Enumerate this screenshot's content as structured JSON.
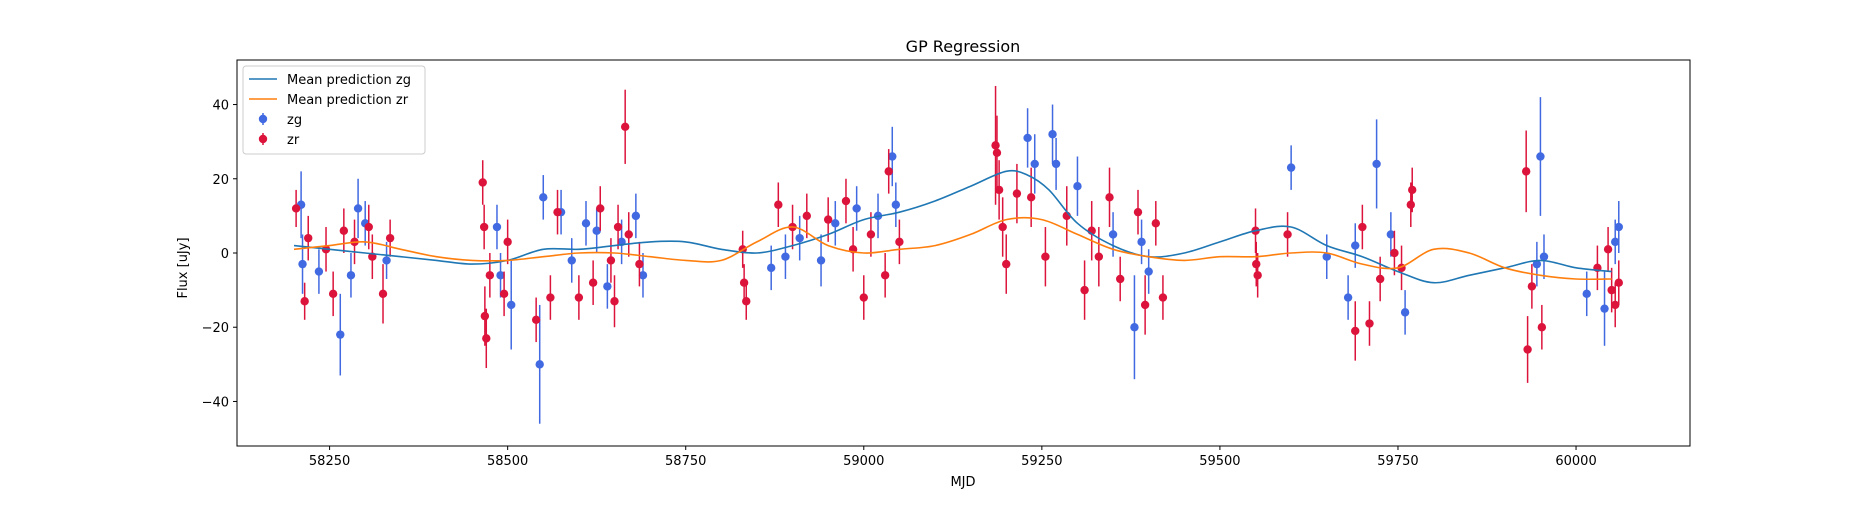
{
  "chart_data": {
    "type": "scatter",
    "title": "GP Regression",
    "xlabel": "MJD",
    "ylabel": "Flux [uJy]",
    "xlim": [
      58120,
      60160
    ],
    "ylim": [
      -52,
      52
    ],
    "x_ticks": [
      58250,
      58500,
      58750,
      59000,
      59250,
      59500,
      59750,
      60000
    ],
    "x_tick_labels": [
      "58250",
      "58500",
      "58750",
      "59000",
      "59250",
      "59500",
      "59750",
      "60000"
    ],
    "y_ticks": [
      -40,
      -20,
      0,
      20,
      40
    ],
    "y_tick_labels": [
      "−40",
      "−20",
      "0",
      "20",
      "40"
    ],
    "grid": false,
    "legend_position": "upper-left",
    "colors": {
      "zg_line": "#1f77b4",
      "zr_line": "#ff7f0e",
      "zg_points": "#4169e1",
      "zr_points": "#dc143c"
    },
    "series": [
      {
        "name": "Mean prediction zg",
        "kind": "line",
        "color": "#1f77b4",
        "x": [
          58200,
          58250,
          58300,
          58350,
          58400,
          58450,
          58500,
          58550,
          58600,
          58650,
          58700,
          58750,
          58800,
          58850,
          58900,
          58950,
          59000,
          59050,
          59100,
          59150,
          59200,
          59230,
          59260,
          59300,
          59350,
          59400,
          59450,
          59500,
          59550,
          59600,
          59650,
          59700,
          59750,
          59800,
          59850,
          59900,
          59950,
          60000,
          60050
        ],
        "y": [
          2,
          1,
          0,
          -1,
          -2,
          -3,
          -2,
          1,
          1,
          2,
          3,
          3,
          1,
          0,
          2,
          5,
          9,
          11,
          14,
          18,
          22,
          21,
          17,
          8,
          2,
          -1,
          0,
          3,
          6,
          7,
          2,
          -1,
          -5,
          -8,
          -6,
          -4,
          -2,
          -4,
          -5
        ]
      },
      {
        "name": "Mean prediction zr",
        "kind": "line",
        "color": "#ff7f0e",
        "x": [
          58200,
          58250,
          58300,
          58350,
          58400,
          58450,
          58500,
          58550,
          58600,
          58650,
          58700,
          58750,
          58800,
          58850,
          58900,
          58950,
          59000,
          59050,
          59100,
          59150,
          59200,
          59250,
          59300,
          59350,
          59400,
          59450,
          59500,
          59550,
          59600,
          59650,
          59700,
          59750,
          59800,
          59850,
          59900,
          59950,
          60000,
          60050
        ],
        "y": [
          1,
          2,
          3,
          1,
          -1,
          -2,
          -2,
          -1,
          0,
          0,
          -1,
          -2,
          -2,
          3,
          7,
          2,
          0,
          1,
          2,
          5,
          9,
          9,
          5,
          1,
          -1,
          -2,
          -1,
          -1,
          0,
          0,
          -3,
          -4,
          1,
          0,
          -4,
          -6,
          -7,
          -7
        ]
      },
      {
        "name": "zg",
        "kind": "errorbar",
        "color": "#4169e1",
        "points": [
          {
            "x": 58210,
            "y": 13,
            "e": 9
          },
          {
            "x": 58212,
            "y": -3,
            "e": 8
          },
          {
            "x": 58235,
            "y": -5,
            "e": 6
          },
          {
            "x": 58265,
            "y": -22,
            "e": 11
          },
          {
            "x": 58280,
            "y": -6,
            "e": 6
          },
          {
            "x": 58290,
            "y": 12,
            "e": 8
          },
          {
            "x": 58300,
            "y": 8,
            "e": 6
          },
          {
            "x": 58330,
            "y": -2,
            "e": 5
          },
          {
            "x": 58485,
            "y": 7,
            "e": 6
          },
          {
            "x": 58490,
            "y": -6,
            "e": 6
          },
          {
            "x": 58505,
            "y": -14,
            "e": 12
          },
          {
            "x": 58545,
            "y": -30,
            "e": 16
          },
          {
            "x": 58550,
            "y": 15,
            "e": 6
          },
          {
            "x": 58575,
            "y": 11,
            "e": 6
          },
          {
            "x": 58590,
            "y": -2,
            "e": 6
          },
          {
            "x": 58610,
            "y": 8,
            "e": 6
          },
          {
            "x": 58625,
            "y": 6,
            "e": 6
          },
          {
            "x": 58640,
            "y": -9,
            "e": 6
          },
          {
            "x": 58660,
            "y": 3,
            "e": 6
          },
          {
            "x": 58680,
            "y": 10,
            "e": 6
          },
          {
            "x": 58690,
            "y": -6,
            "e": 6
          },
          {
            "x": 58870,
            "y": -4,
            "e": 6
          },
          {
            "x": 58890,
            "y": -1,
            "e": 6
          },
          {
            "x": 58910,
            "y": 4,
            "e": 6
          },
          {
            "x": 58940,
            "y": -2,
            "e": 7
          },
          {
            "x": 58960,
            "y": 8,
            "e": 6
          },
          {
            "x": 58990,
            "y": 12,
            "e": 6
          },
          {
            "x": 59020,
            "y": 10,
            "e": 6
          },
          {
            "x": 59040,
            "y": 26,
            "e": 8
          },
          {
            "x": 59045,
            "y": 13,
            "e": 6
          },
          {
            "x": 59230,
            "y": 31,
            "e": 8
          },
          {
            "x": 59240,
            "y": 24,
            "e": 8
          },
          {
            "x": 59265,
            "y": 32,
            "e": 8
          },
          {
            "x": 59270,
            "y": 24,
            "e": 7
          },
          {
            "x": 59300,
            "y": 18,
            "e": 8
          },
          {
            "x": 59350,
            "y": 5,
            "e": 6
          },
          {
            "x": 59380,
            "y": -20,
            "e": 14
          },
          {
            "x": 59390,
            "y": 3,
            "e": 6
          },
          {
            "x": 59400,
            "y": -5,
            "e": 6
          },
          {
            "x": 59600,
            "y": 23,
            "e": 6
          },
          {
            "x": 59650,
            "y": -1,
            "e": 6
          },
          {
            "x": 59680,
            "y": -12,
            "e": 6
          },
          {
            "x": 59690,
            "y": 2,
            "e": 6
          },
          {
            "x": 59720,
            "y": 24,
            "e": 12
          },
          {
            "x": 59740,
            "y": 5,
            "e": 6
          },
          {
            "x": 59760,
            "y": -16,
            "e": 6
          },
          {
            "x": 59945,
            "y": -3,
            "e": 6
          },
          {
            "x": 59950,
            "y": 26,
            "e": 16
          },
          {
            "x": 59955,
            "y": -1,
            "e": 6
          },
          {
            "x": 60015,
            "y": -11,
            "e": 6
          },
          {
            "x": 60040,
            "y": -15,
            "e": 10
          },
          {
            "x": 60055,
            "y": 3,
            "e": 6
          },
          {
            "x": 60060,
            "y": 7,
            "e": 7
          }
        ]
      },
      {
        "name": "zr",
        "kind": "errorbar",
        "color": "#dc143c",
        "points": [
          {
            "x": 58203,
            "y": 12,
            "e": 5
          },
          {
            "x": 58215,
            "y": -13,
            "e": 5
          },
          {
            "x": 58220,
            "y": 4,
            "e": 6
          },
          {
            "x": 58245,
            "y": 1,
            "e": 6
          },
          {
            "x": 58255,
            "y": -11,
            "e": 6
          },
          {
            "x": 58270,
            "y": 6,
            "e": 6
          },
          {
            "x": 58285,
            "y": 3,
            "e": 6
          },
          {
            "x": 58305,
            "y": 7,
            "e": 6
          },
          {
            "x": 58310,
            "y": -1,
            "e": 6
          },
          {
            "x": 58325,
            "y": -11,
            "e": 8
          },
          {
            "x": 58335,
            "y": 4,
            "e": 5
          },
          {
            "x": 58465,
            "y": 19,
            "e": 6
          },
          {
            "x": 58467,
            "y": 7,
            "e": 6
          },
          {
            "x": 58468,
            "y": -17,
            "e": 8
          },
          {
            "x": 58470,
            "y": -23,
            "e": 8
          },
          {
            "x": 58475,
            "y": -6,
            "e": 6
          },
          {
            "x": 58495,
            "y": -11,
            "e": 6
          },
          {
            "x": 58500,
            "y": 3,
            "e": 6
          },
          {
            "x": 58540,
            "y": -18,
            "e": 6
          },
          {
            "x": 58560,
            "y": -12,
            "e": 6
          },
          {
            "x": 58570,
            "y": 11,
            "e": 6
          },
          {
            "x": 58600,
            "y": -12,
            "e": 6
          },
          {
            "x": 58620,
            "y": -8,
            "e": 6
          },
          {
            "x": 58630,
            "y": 12,
            "e": 6
          },
          {
            "x": 58645,
            "y": -2,
            "e": 6
          },
          {
            "x": 58650,
            "y": -13,
            "e": 7
          },
          {
            "x": 58655,
            "y": 7,
            "e": 6
          },
          {
            "x": 58665,
            "y": 34,
            "e": 10
          },
          {
            "x": 58670,
            "y": 5,
            "e": 6
          },
          {
            "x": 58685,
            "y": -3,
            "e": 6
          },
          {
            "x": 58830,
            "y": 1,
            "e": 5
          },
          {
            "x": 58832,
            "y": -8,
            "e": 5
          },
          {
            "x": 58835,
            "y": -13,
            "e": 5
          },
          {
            "x": 58880,
            "y": 13,
            "e": 6
          },
          {
            "x": 58900,
            "y": 7,
            "e": 6
          },
          {
            "x": 58920,
            "y": 10,
            "e": 6
          },
          {
            "x": 58950,
            "y": 9,
            "e": 6
          },
          {
            "x": 58975,
            "y": 14,
            "e": 6
          },
          {
            "x": 58985,
            "y": 1,
            "e": 6
          },
          {
            "x": 59000,
            "y": -12,
            "e": 6
          },
          {
            "x": 59010,
            "y": 5,
            "e": 6
          },
          {
            "x": 59030,
            "y": -6,
            "e": 6
          },
          {
            "x": 59035,
            "y": 22,
            "e": 6
          },
          {
            "x": 59050,
            "y": 3,
            "e": 6
          },
          {
            "x": 59185,
            "y": 29,
            "e": 16
          },
          {
            "x": 59187,
            "y": 27,
            "e": 10
          },
          {
            "x": 59190,
            "y": 17,
            "e": 8
          },
          {
            "x": 59195,
            "y": 7,
            "e": 8
          },
          {
            "x": 59200,
            "y": -3,
            "e": 8
          },
          {
            "x": 59215,
            "y": 16,
            "e": 8
          },
          {
            "x": 59235,
            "y": 15,
            "e": 8
          },
          {
            "x": 59255,
            "y": -1,
            "e": 8
          },
          {
            "x": 59285,
            "y": 10,
            "e": 8
          },
          {
            "x": 59310,
            "y": -10,
            "e": 8
          },
          {
            "x": 59320,
            "y": 6,
            "e": 8
          },
          {
            "x": 59330,
            "y": -1,
            "e": 8
          },
          {
            "x": 59345,
            "y": 15,
            "e": 8
          },
          {
            "x": 59360,
            "y": -7,
            "e": 6
          },
          {
            "x": 59385,
            "y": 11,
            "e": 6
          },
          {
            "x": 59395,
            "y": -14,
            "e": 8
          },
          {
            "x": 59410,
            "y": 8,
            "e": 6
          },
          {
            "x": 59420,
            "y": -12,
            "e": 6
          },
          {
            "x": 59550,
            "y": 6,
            "e": 6
          },
          {
            "x": 59551,
            "y": -3,
            "e": 6
          },
          {
            "x": 59553,
            "y": -6,
            "e": 6
          },
          {
            "x": 59595,
            "y": 5,
            "e": 6
          },
          {
            "x": 59690,
            "y": -21,
            "e": 8
          },
          {
            "x": 59700,
            "y": 7,
            "e": 6
          },
          {
            "x": 59710,
            "y": -19,
            "e": 6
          },
          {
            "x": 59725,
            "y": -7,
            "e": 6
          },
          {
            "x": 59745,
            "y": 0,
            "e": 6
          },
          {
            "x": 59755,
            "y": -4,
            "e": 6
          },
          {
            "x": 59768,
            "y": 13,
            "e": 6
          },
          {
            "x": 59770,
            "y": 17,
            "e": 6
          },
          {
            "x": 59930,
            "y": 22,
            "e": 11
          },
          {
            "x": 59932,
            "y": -26,
            "e": 9
          },
          {
            "x": 59938,
            "y": -9,
            "e": 6
          },
          {
            "x": 59952,
            "y": -20,
            "e": 6
          },
          {
            "x": 60030,
            "y": -4,
            "e": 6
          },
          {
            "x": 60045,
            "y": 1,
            "e": 6
          },
          {
            "x": 60050,
            "y": -10,
            "e": 6
          },
          {
            "x": 60055,
            "y": -14,
            "e": 6
          },
          {
            "x": 60060,
            "y": -8,
            "e": 6
          }
        ]
      }
    ],
    "legend": [
      {
        "label": "Mean prediction zg",
        "kind": "line",
        "color": "#1f77b4"
      },
      {
        "label": "Mean prediction zr",
        "kind": "line",
        "color": "#ff7f0e"
      },
      {
        "label": "zg",
        "kind": "errorbar",
        "color": "#4169e1"
      },
      {
        "label": "zr",
        "kind": "errorbar",
        "color": "#dc143c"
      }
    ]
  }
}
